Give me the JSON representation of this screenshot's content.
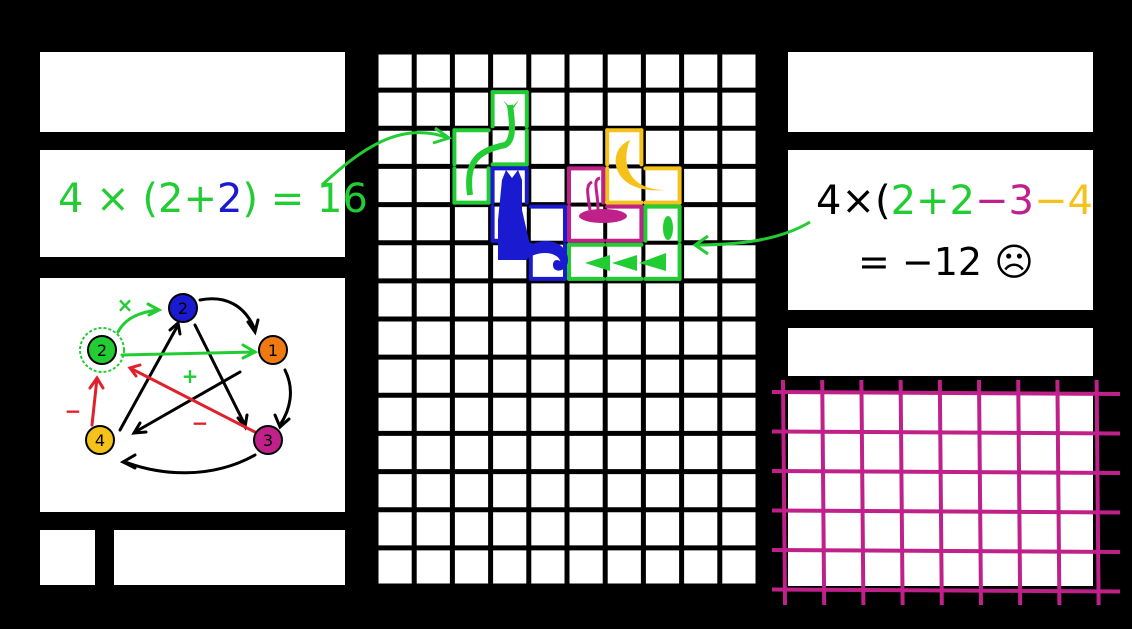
{
  "colors": {
    "green": "#22cc33",
    "blue": "#1a1ad0",
    "orange": "#f07a12",
    "magenta": "#c0208a",
    "yellow": "#f5c21b",
    "red": "#e0202a",
    "black": "#000000"
  },
  "left_equation": {
    "parts": [
      {
        "t": "4 × (2+",
        "c": "green"
      },
      {
        "t": "2",
        "c": "blue"
      },
      {
        "t": ") = 16",
        "c": "green"
      }
    ]
  },
  "right_equation": {
    "line1": [
      {
        "t": "4×(",
        "c": "black"
      },
      {
        "t": "2+2",
        "c": "green"
      },
      {
        "t": "−3",
        "c": "magenta"
      },
      {
        "t": "−4",
        "c": "yellow"
      },
      {
        "t": ")",
        "c": "black"
      }
    ],
    "line2": "= −12 ☹"
  },
  "graph": {
    "nodes": [
      {
        "label": "2",
        "color": "green",
        "highlight": true
      },
      {
        "label": "2",
        "color": "blue"
      },
      {
        "label": "1",
        "color": "orange"
      },
      {
        "label": "3",
        "color": "magenta"
      },
      {
        "label": "4",
        "color": "yellow"
      }
    ],
    "edge_labels": [
      {
        "t": "×",
        "c": "green"
      },
      {
        "t": "+",
        "c": "green"
      },
      {
        "t": "−",
        "c": "red"
      },
      {
        "t": "−",
        "c": "red"
      }
    ]
  },
  "board": {
    "columns": 10,
    "rows": 14,
    "pieces": [
      {
        "color": "green",
        "icon": "sprout-icon",
        "cells": [
          [
            3,
            1
          ],
          [
            2,
            2
          ],
          [
            3,
            2
          ],
          [
            2,
            3
          ]
        ]
      },
      {
        "color": "blue",
        "icon": "cat-icon",
        "cells": [
          [
            3,
            3
          ],
          [
            3,
            4
          ],
          [
            4,
            4
          ],
          [
            4,
            5
          ]
        ]
      },
      {
        "color": "magenta",
        "icon": "snail-icon",
        "cells": [
          [
            5,
            3
          ],
          [
            5,
            4
          ],
          [
            6,
            4
          ]
        ]
      },
      {
        "color": "yellow",
        "icon": "moon-icon",
        "cells": [
          [
            6,
            2
          ],
          [
            6,
            3
          ],
          [
            7,
            3
          ]
        ]
      },
      {
        "color": "green",
        "icon": "arrows-icon",
        "cells": [
          [
            7,
            4
          ],
          [
            5,
            5
          ],
          [
            6,
            5
          ],
          [
            7,
            5
          ]
        ]
      }
    ]
  },
  "magenta_grid": {
    "columns": 8,
    "rows": 5,
    "color": "#c0208a"
  }
}
